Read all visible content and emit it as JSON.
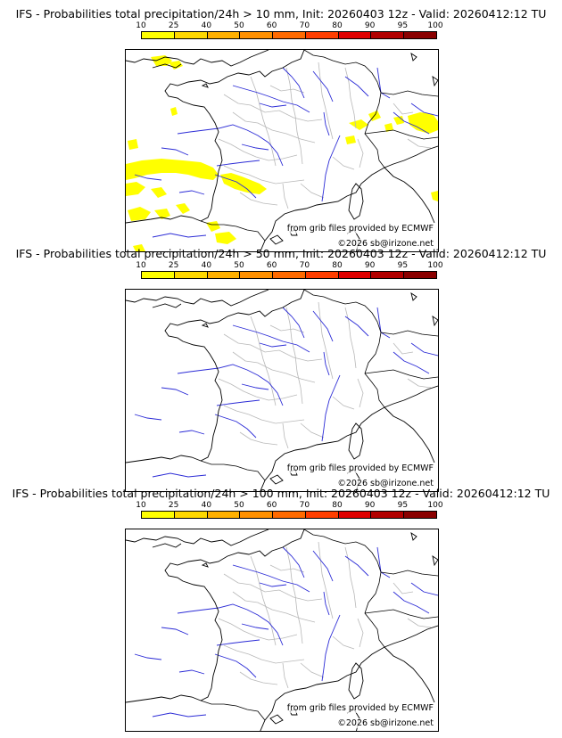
{
  "colorbar": {
    "ticks": [
      "10",
      "25",
      "40",
      "50",
      "60",
      "70",
      "80",
      "90",
      "95",
      "100"
    ],
    "colors": [
      "#ffff00",
      "#ffd800",
      "#ffb000",
      "#ff9000",
      "#ff6a00",
      "#ff3e00",
      "#e00000",
      "#b20000",
      "#8a0000",
      "#5a0000"
    ]
  },
  "panels": [
    {
      "title": "IFS - Probabilities total precipitation/24h > 10 mm, Init: 20260403 12z - Valid: 20260412:12 TU",
      "threshold_mm": 10,
      "source_credit": "from grib files provided by ECMWF",
      "copyright": "©2026 sb@irizone.net",
      "precip_color": "#ffff00"
    },
    {
      "title": "IFS - Probabilities total precipitation/24h > 50 mm, Init: 20260403 12z - Valid: 20260412:12 TU",
      "threshold_mm": 50,
      "source_credit": "from grib files provided by ECMWF",
      "copyright": "©2026 sb@irizone.net"
    },
    {
      "title": "IFS - Probabilities total precipitation/24h > 100 mm, Init: 20260403 12z - Valid: 20260412:12 TU",
      "threshold_mm": 100,
      "source_credit": "from grib files provided by ECMWF",
      "copyright": "©2026 sb@irizone.net"
    }
  ],
  "map_colors": {
    "coast": "#000000",
    "rivers": "#2b2bd6",
    "admin_borders": "#b8b8b8"
  }
}
